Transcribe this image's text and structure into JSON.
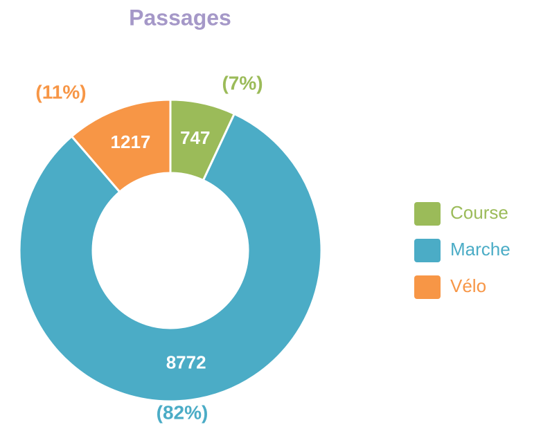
{
  "chart_data": {
    "type": "donut",
    "title": "Passages",
    "categories": [
      "Course",
      "Marche",
      "Vélo"
    ],
    "values": [
      747,
      8772,
      1217
    ],
    "percent_labels": [
      "(7%)",
      "(82%)",
      "(11%)"
    ],
    "colors": [
      "#9bbb59",
      "#4bacc6",
      "#f79646"
    ],
    "legend": "right"
  }
}
